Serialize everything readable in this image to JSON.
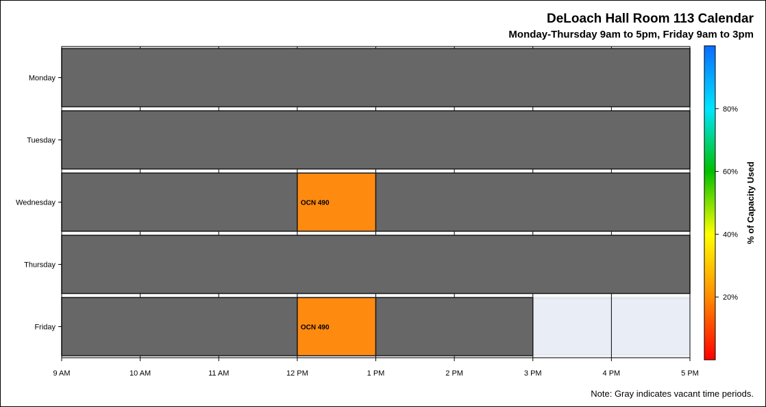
{
  "chart_data": {
    "type": "gantt",
    "title": "DeLoach Hall Room 113 Calendar",
    "subtitle": "Monday-Thursday 9am to 5pm, Friday 9am to 3pm",
    "footnote": "Note: Gray indicates vacant time periods.",
    "x_axis": {
      "range_hours": [
        9,
        17
      ],
      "ticks": [
        {
          "value": 9,
          "label": "9 AM"
        },
        {
          "value": 10,
          "label": "10 AM"
        },
        {
          "value": 11,
          "label": "11 AM"
        },
        {
          "value": 12,
          "label": "12 PM"
        },
        {
          "value": 13,
          "label": "1 PM"
        },
        {
          "value": 14,
          "label": "2 PM"
        },
        {
          "value": 15,
          "label": "3 PM"
        },
        {
          "value": 16,
          "label": "4 PM"
        },
        {
          "value": 17,
          "label": "5 PM"
        }
      ]
    },
    "days": [
      {
        "label": "Monday",
        "blocks": [
          {
            "start": 9,
            "end": 17,
            "kind": "vacant"
          }
        ]
      },
      {
        "label": "Tuesday",
        "blocks": [
          {
            "start": 9,
            "end": 17,
            "kind": "vacant"
          }
        ]
      },
      {
        "label": "Wednesday",
        "blocks": [
          {
            "start": 9,
            "end": 12,
            "kind": "vacant"
          },
          {
            "start": 12,
            "end": 13,
            "kind": "event",
            "label": "OCN 490"
          },
          {
            "start": 13,
            "end": 17,
            "kind": "vacant"
          }
        ]
      },
      {
        "label": "Thursday",
        "blocks": [
          {
            "start": 9,
            "end": 17,
            "kind": "vacant"
          }
        ]
      },
      {
        "label": "Friday",
        "blocks": [
          {
            "start": 9,
            "end": 12,
            "kind": "vacant"
          },
          {
            "start": 12,
            "end": 13,
            "kind": "event",
            "label": "OCN 490"
          },
          {
            "start": 13,
            "end": 15,
            "kind": "vacant"
          }
        ]
      }
    ],
    "colorbar": {
      "title": "% of Capacity Used",
      "range": [
        0,
        100
      ],
      "ticks": [
        {
          "value": 20,
          "label": "20%"
        },
        {
          "value": 40,
          "label": "40%"
        },
        {
          "value": 60,
          "label": "60%"
        },
        {
          "value": 80,
          "label": "80%"
        }
      ],
      "stops": [
        "#ff0000",
        "#ff8c00",
        "#ffff00",
        "#00c000",
        "#00e5ff",
        "#0a6cff"
      ]
    },
    "colors": {
      "vacant": "#676767",
      "event": "#ff8a10",
      "plot_background": "#e8edf6"
    }
  }
}
